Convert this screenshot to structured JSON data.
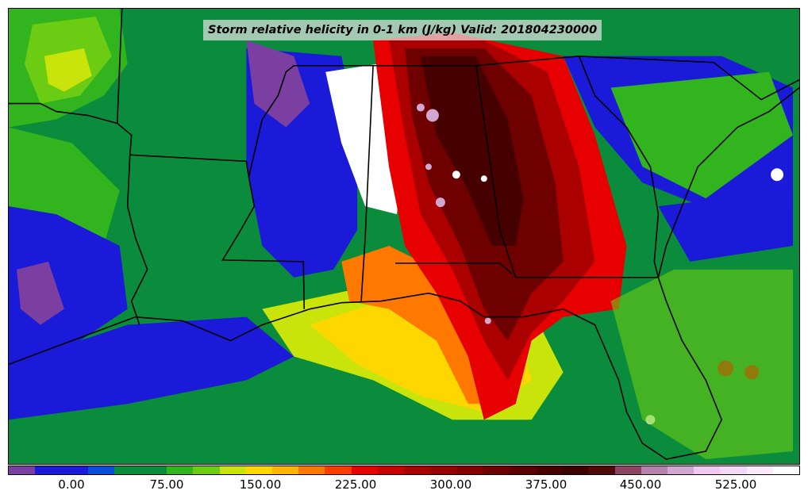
{
  "title": "Storm relative helicity in 0-1 km (J/kg) Valid: 201804230000",
  "colorbar": {
    "colors": [
      "#7a3fa0",
      "#1a1ad8",
      "#1a1ad8",
      "#0a4ed8",
      "#0a8c3c",
      "#0a8c3c",
      "#32b41e",
      "#6ccc14",
      "#c8e40a",
      "#ffd700",
      "#ffb400",
      "#ff7800",
      "#ff3c00",
      "#e60000",
      "#c80000",
      "#aa0000",
      "#960000",
      "#820000",
      "#6e0000",
      "#5a0000",
      "#460000",
      "#3c0000",
      "#500a0a",
      "#8c4664",
      "#b482aa",
      "#d2a8d2",
      "#f0c8f0",
      "#f5d8f5",
      "#faeafa",
      "#ffffff"
    ],
    "tick_labels": [
      "0.00",
      "75.00",
      "150.00",
      "225.00",
      "300.00",
      "375.00",
      "450.00",
      "525.00"
    ]
  },
  "legend_colors": {
    "background": "#0a8c3c",
    "state_lines": "#000000"
  }
}
